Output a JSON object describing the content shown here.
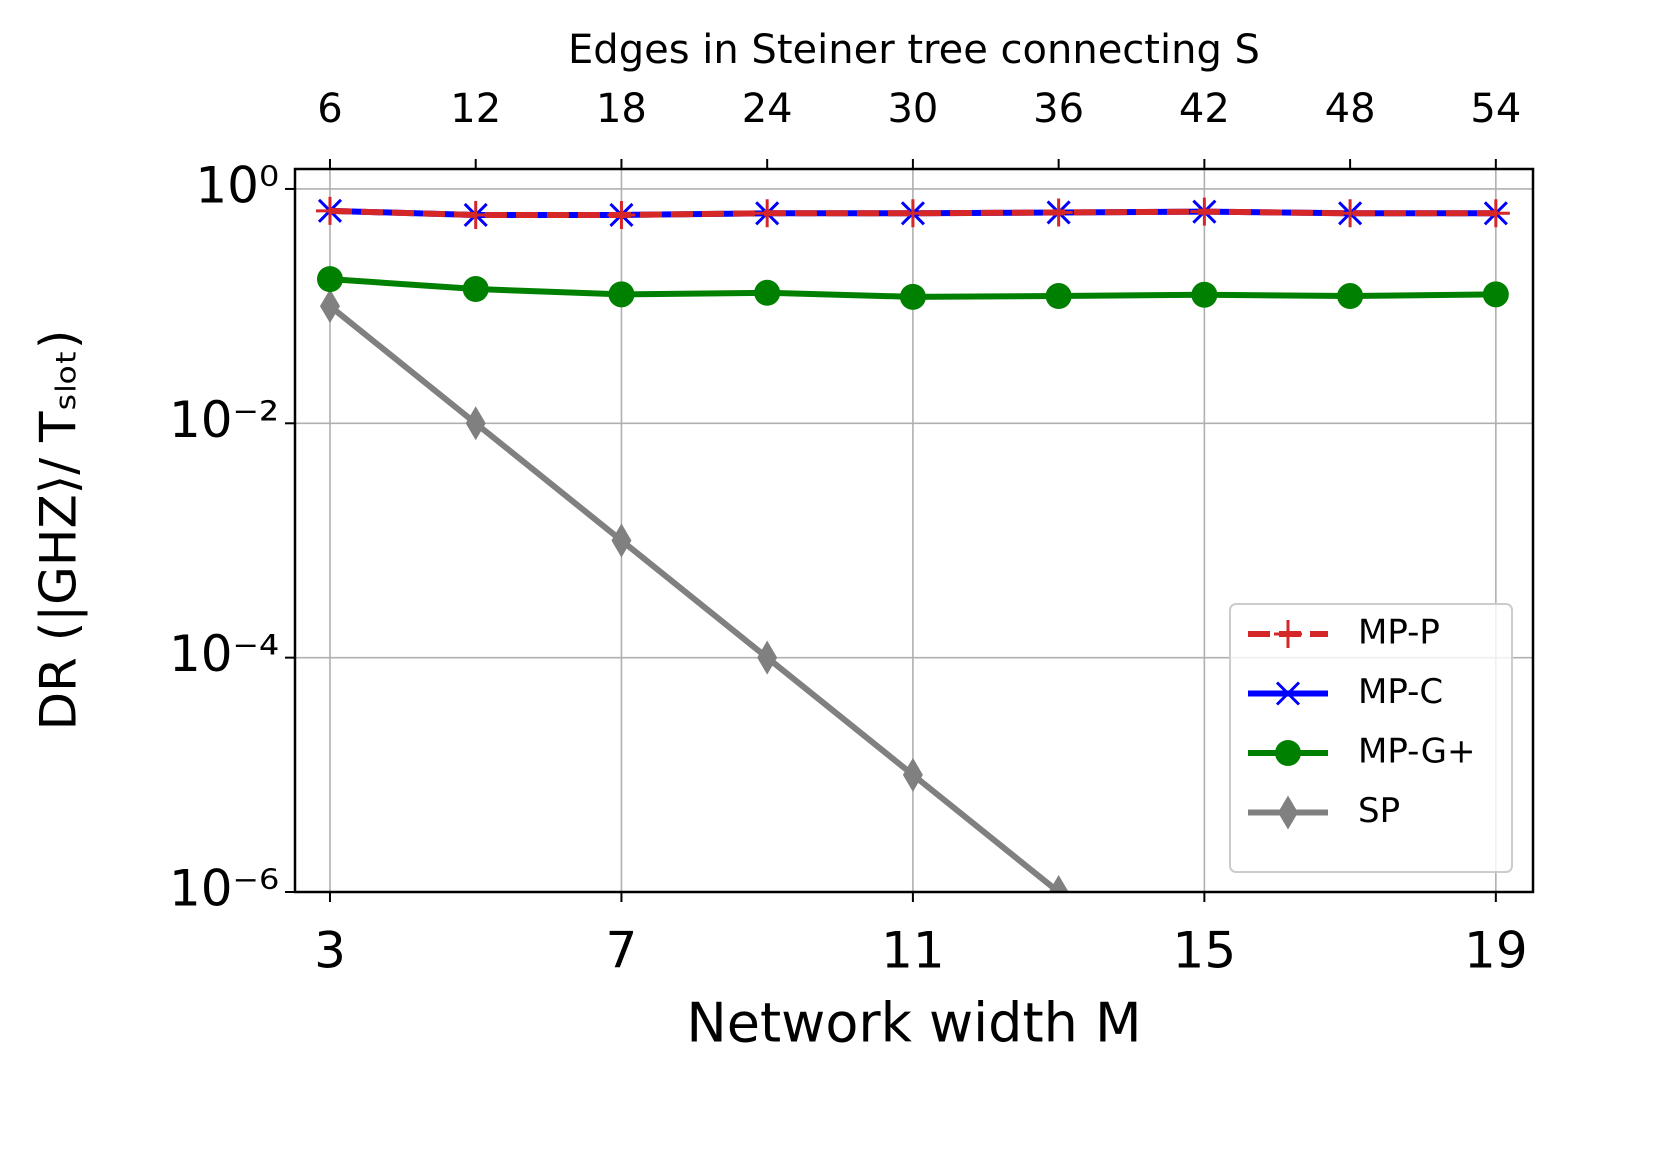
{
  "chart_data": {
    "type": "line",
    "xlabel": "Network width M",
    "x2label": "Edges in Steiner tree connecting S",
    "ylabel": "DR (|GHZ⟩/ Tₛₗₒₜ)",
    "x": [
      3,
      5,
      7,
      9,
      11,
      13,
      15,
      17,
      19
    ],
    "xlim": [
      2.52,
      19.51
    ],
    "xticks": [
      3,
      7,
      11,
      15,
      19
    ],
    "x2lim": [
      4.56,
      55.53
    ],
    "x2ticks": [
      6,
      12,
      18,
      24,
      30,
      36,
      42,
      48,
      54
    ],
    "ylim": [
      1e-06,
      1.48
    ],
    "yscale": "log",
    "yticks": [
      {
        "value": 1,
        "label": "10⁰"
      },
      {
        "value": 0.01,
        "label": "10⁻²"
      },
      {
        "value": 0.0001,
        "label": "10⁻⁴"
      },
      {
        "value": 1e-06,
        "label": "10⁻⁶"
      }
    ],
    "grid": true,
    "legend": "lower right",
    "series": [
      {
        "name": "MP-P",
        "color": "#d62728",
        "marker": "plus",
        "dashed": true,
        "values": [
          0.65,
          0.6,
          0.6,
          0.62,
          0.62,
          0.63,
          0.64,
          0.62,
          0.62
        ]
      },
      {
        "name": "MP-C",
        "color": "#0000ff",
        "marker": "x",
        "values": [
          0.65,
          0.6,
          0.6,
          0.62,
          0.62,
          0.63,
          0.64,
          0.62,
          0.62
        ]
      },
      {
        "name": "MP-G+",
        "color": "#008000",
        "marker": "circle",
        "values": [
          0.17,
          0.14,
          0.126,
          0.13,
          0.12,
          0.122,
          0.125,
          0.122,
          0.126
        ]
      },
      {
        "name": "SP",
        "color": "#808080",
        "marker": "diamond",
        "values": [
          0.1,
          0.01,
          0.001,
          0.0001,
          1e-05,
          1e-06,
          null,
          null,
          null
        ]
      }
    ]
  }
}
